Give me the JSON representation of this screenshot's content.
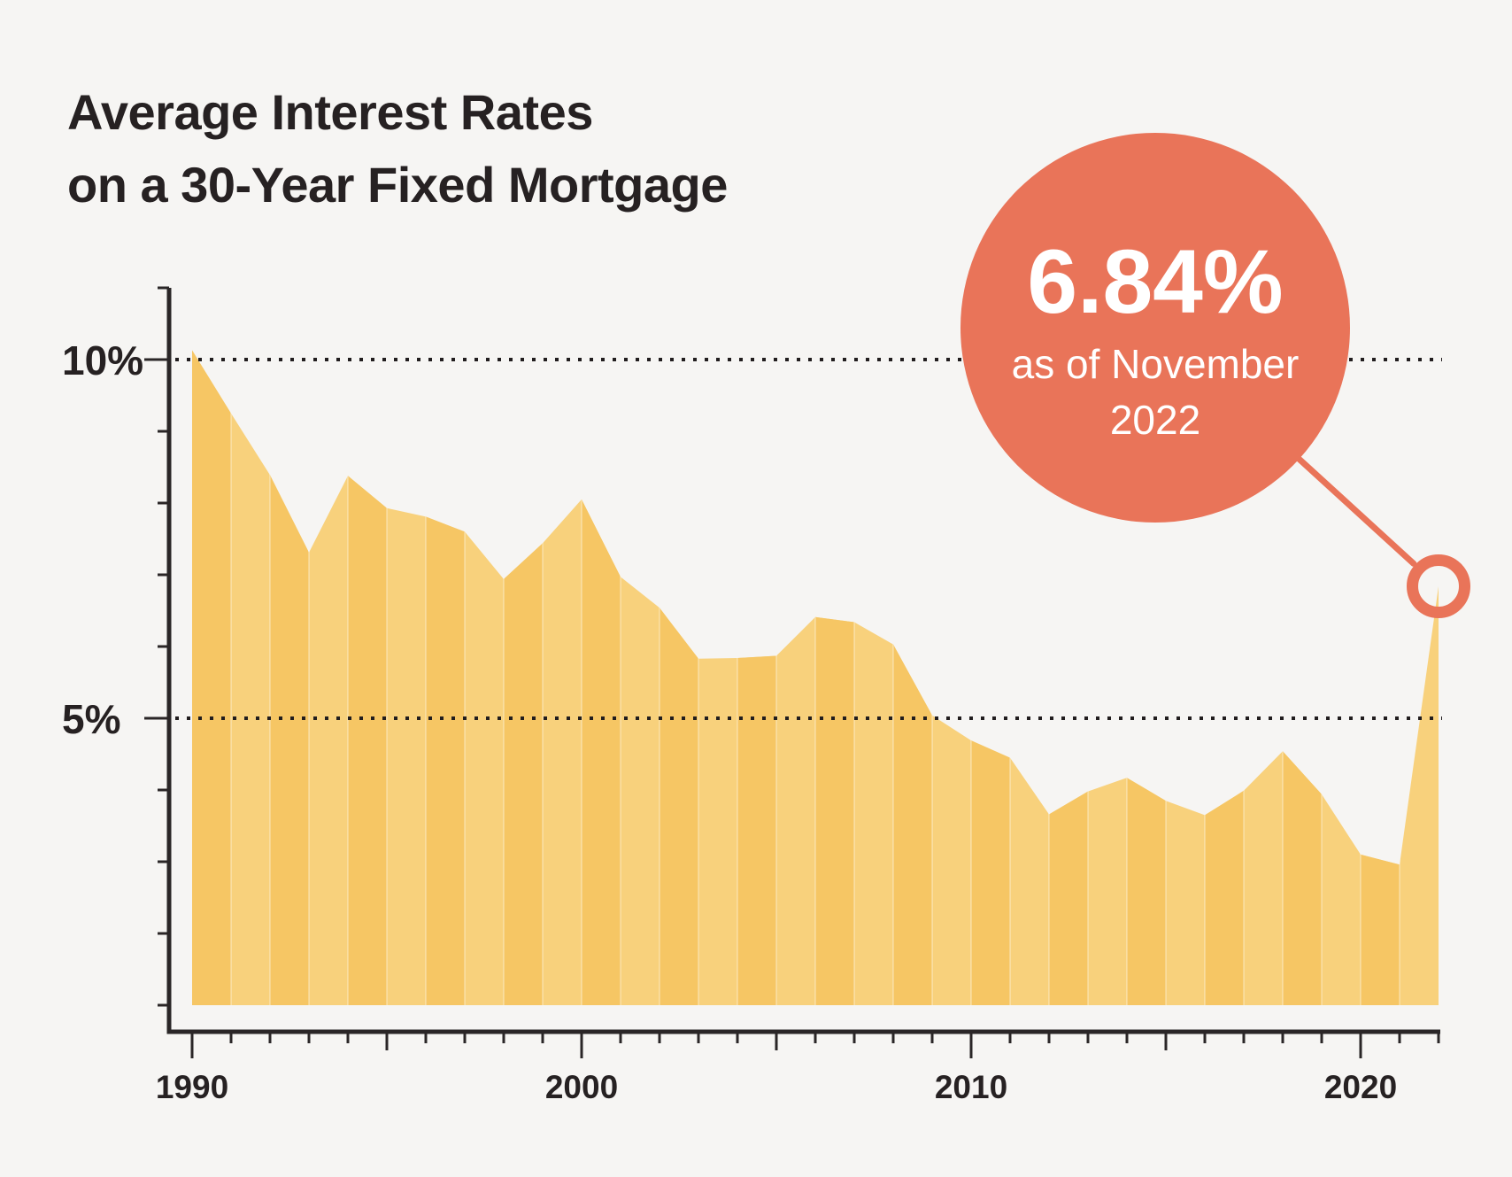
{
  "title": {
    "line1": "Average Interest Rates",
    "line2": "on a 30-Year Fixed Mortgage"
  },
  "callout": {
    "value": "6.84%",
    "caption_line1": "as of November",
    "caption_line2": "2022"
  },
  "colors": {
    "background": "#F6F5F3",
    "area_light": "#F8D17C",
    "area_dark": "#F6C664",
    "accent": "#E97459",
    "axis": "#2A2627",
    "text": "#262122",
    "callout_text": "#FFFFFF"
  },
  "chart_data": {
    "type": "area",
    "title": "Average Interest Rates on a 30-Year Fixed Mortgage",
    "x": [
      1990,
      1991,
      1992,
      1993,
      1994,
      1995,
      1996,
      1997,
      1998,
      1999,
      2000,
      2001,
      2002,
      2003,
      2004,
      2005,
      2006,
      2007,
      2008,
      2009,
      2010,
      2011,
      2012,
      2013,
      2014,
      2015,
      2016,
      2017,
      2018,
      2019,
      2020,
      2021,
      2022
    ],
    "values": [
      10.13,
      9.25,
      8.39,
      7.31,
      8.38,
      7.93,
      7.81,
      7.6,
      6.94,
      7.44,
      8.05,
      6.97,
      6.54,
      5.83,
      5.84,
      5.87,
      6.41,
      6.34,
      6.03,
      5.04,
      4.69,
      4.45,
      3.66,
      3.98,
      4.17,
      3.85,
      3.65,
      3.99,
      4.54,
      3.94,
      3.1,
      2.96,
      6.84
    ],
    "xlim": [
      1990,
      2022
    ],
    "ylim": [
      1,
      11
    ],
    "x_tick_labels": [
      {
        "year": 1990,
        "label": "1990"
      },
      {
        "year": 2000,
        "label": "2000"
      },
      {
        "year": 2010,
        "label": "2010"
      },
      {
        "year": 2020,
        "label": "2020"
      }
    ],
    "x_minor_ticks_every_years": 1,
    "y_gridlines": [
      {
        "value": 10,
        "label": "10%"
      },
      {
        "value": 5,
        "label": "5%"
      }
    ],
    "grid_style": "dotted-horizontal",
    "legend": "none",
    "annotation": {
      "year": 2022,
      "value": 6.84,
      "text": "6.84% as of November 2022"
    }
  }
}
